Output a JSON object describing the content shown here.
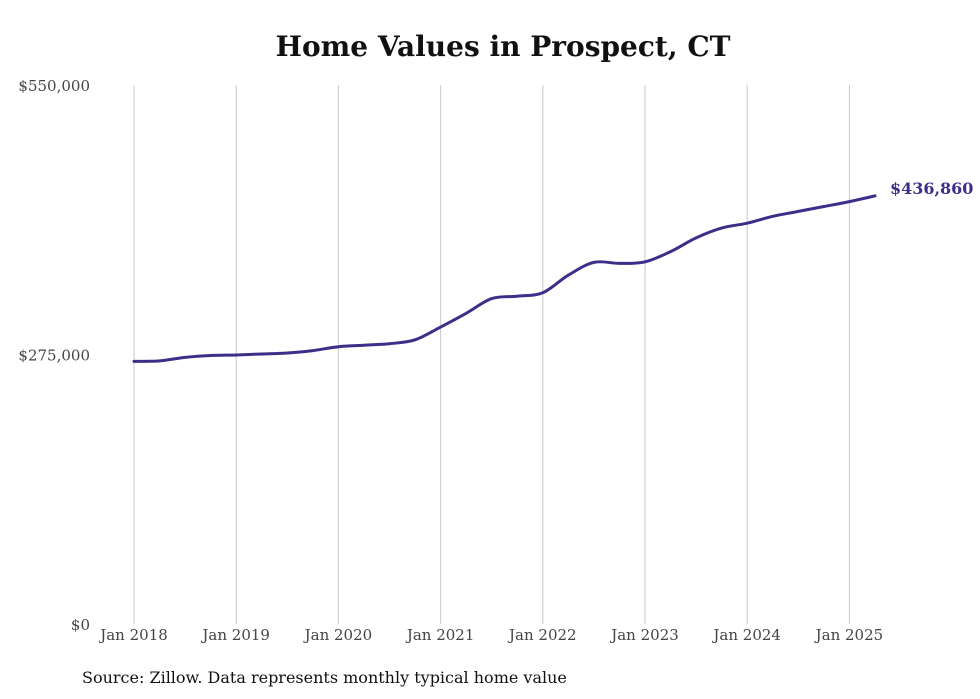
{
  "chart_data": {
    "type": "line",
    "title": "Home Values in Prospect, CT",
    "xlabel": "",
    "ylabel": "",
    "ylim": [
      0,
      550000
    ],
    "y_ticks": [
      "$550,000",
      "$275,000",
      "$0"
    ],
    "y_tick_values": [
      550000,
      275000,
      0
    ],
    "x_ticks": [
      "Jan 2018",
      "Jan 2019",
      "Jan 2020",
      "Jan 2021",
      "Jan 2022",
      "Jan 2023",
      "Jan 2024",
      "Jan 2025"
    ],
    "grid": "vertical",
    "line_color": "#3b2f8a",
    "end_label": "$436,860",
    "series": [
      {
        "x": [
          "2018-01",
          "2018-04",
          "2018-07",
          "2018-10",
          "2019-01",
          "2019-04",
          "2019-07",
          "2019-10",
          "2020-01",
          "2020-04",
          "2020-07",
          "2020-10",
          "2021-01",
          "2021-04",
          "2021-07",
          "2021-10",
          "2022-01",
          "2022-04",
          "2022-07",
          "2022-10",
          "2023-01",
          "2023-04",
          "2023-07",
          "2023-10",
          "2024-01",
          "2024-04",
          "2024-07",
          "2024-10",
          "2025-01",
          "2025-04"
        ],
        "values": [
          268000,
          268500,
          272000,
          274000,
          274500,
          275500,
          276500,
          279000,
          283000,
          284500,
          286000,
          290000,
          303000,
          317000,
          332000,
          334500,
          338000,
          356000,
          369000,
          368000,
          369500,
          380000,
          394000,
          404000,
          409000,
          416000,
          421000,
          426000,
          431000,
          436860
        ]
      }
    ]
  },
  "source": "Source: Zillow. Data represents monthly typical home value"
}
